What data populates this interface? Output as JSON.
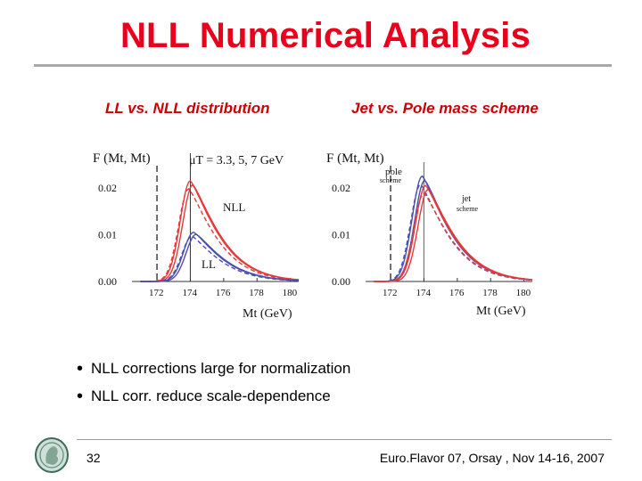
{
  "slide": {
    "title": "NLL Numerical Analysis",
    "subheadings": {
      "left": "LL vs. NLL distribution",
      "right": "Jet vs. Pole mass scheme"
    },
    "bullets": [
      "NLL corrections large for normalization",
      "NLL corr. reduce scale-dependence"
    ],
    "page_number": "32",
    "footer": "Euro.Flavor 07, Orsay , Nov 14-16, 2007",
    "colors": {
      "title": "#e8001c",
      "subheading": "#cc0000",
      "red_curve": "#e33b3b",
      "blue_curve": "#4b4fb0"
    }
  },
  "chart_data": [
    {
      "type": "line",
      "title": "LL vs. NLL distribution",
      "ylabel": "F (Mt, Mt)",
      "xlabel": "Mt (GeV)",
      "annotation": "μT = 3.3, 5, 7 GeV",
      "xlim": [
        170.5,
        180.5
      ],
      "ylim": [
        0,
        0.027
      ],
      "xticks": [
        "172",
        "174",
        "176",
        "178",
        "180"
      ],
      "yticks": [
        "0.00",
        "0.01",
        "0.02"
      ],
      "vline_x": 172,
      "series": [
        {
          "name": "NLL",
          "label": "NLL",
          "color": "red",
          "peak_x": 174.0,
          "peak_y": 0.0215
        },
        {
          "name": "LL",
          "label": "LL",
          "color": "blue",
          "peak_x": 174.2,
          "peak_y": 0.0105
        }
      ]
    },
    {
      "type": "line",
      "title": "Jet vs. Pole mass scheme",
      "ylabel": "F (Mt, Mt)",
      "xlabel": "Mt (GeV)",
      "xlim": [
        170.5,
        180.5
      ],
      "ylim": [
        0,
        0.027
      ],
      "xticks": [
        "172",
        "174",
        "176",
        "178",
        "180"
      ],
      "yticks": [
        "0.00",
        "0.01",
        "0.02"
      ],
      "vline_x": 172,
      "series": [
        {
          "name": "pole scheme",
          "label": "pole",
          "sublabel": "scheme",
          "color": "blue",
          "peak_x": 173.9,
          "peak_y": 0.0225
        },
        {
          "name": "jet scheme",
          "label": "jet",
          "sublabel": "scheme",
          "color": "red",
          "peak_x": 174.1,
          "peak_y": 0.0205
        }
      ]
    }
  ]
}
